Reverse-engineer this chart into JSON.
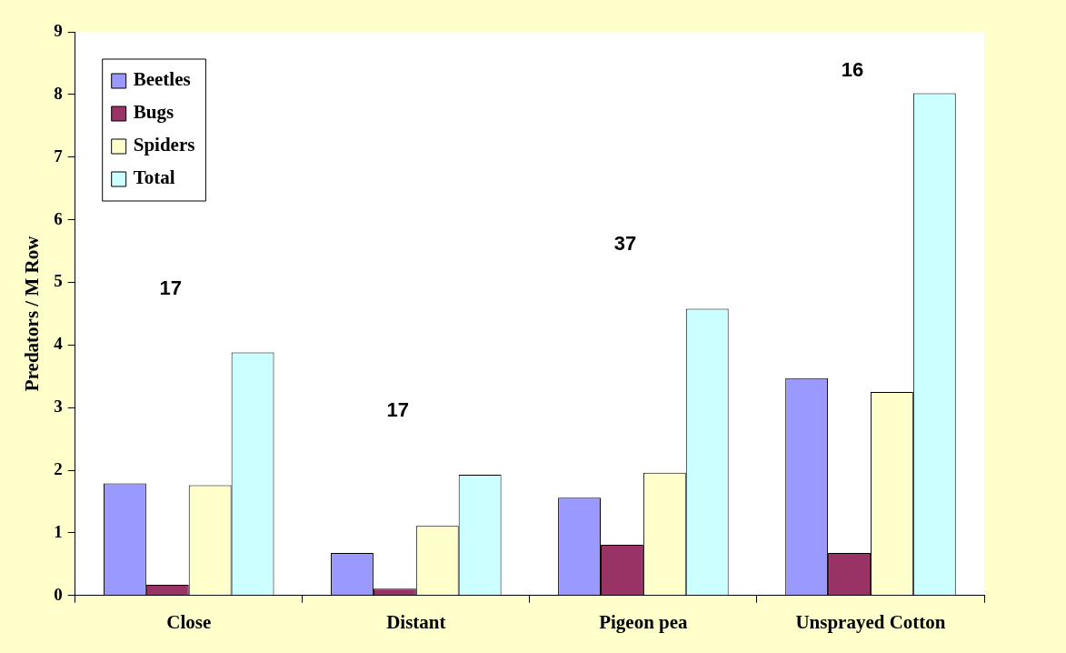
{
  "chart_data": {
    "type": "bar",
    "ylabel": "Predators / M Row",
    "categories": [
      "Close",
      "Distant",
      "Pigeon pea",
      "Unsprayed Cotton"
    ],
    "series": [
      {
        "name": "Beetles",
        "color": "#9999ff",
        "values": [
          1.79,
          0.68,
          1.56,
          3.47
        ]
      },
      {
        "name": "Bugs",
        "color": "#993366",
        "values": [
          0.17,
          0.11,
          0.81,
          0.68
        ]
      },
      {
        "name": "Spiders",
        "color": "#ffffcc",
        "values": [
          1.76,
          1.11,
          1.96,
          3.25
        ]
      },
      {
        "name": "Total",
        "color": "#ccffff",
        "values": [
          3.88,
          1.93,
          4.58,
          8.02
        ]
      }
    ],
    "ylim": [
      0,
      9
    ],
    "yticks": [
      0,
      1,
      2,
      3,
      4,
      5,
      6,
      7,
      8,
      9
    ],
    "grid": false,
    "legend": "top left",
    "annotations": [
      "17",
      "17",
      "37",
      "16"
    ]
  }
}
